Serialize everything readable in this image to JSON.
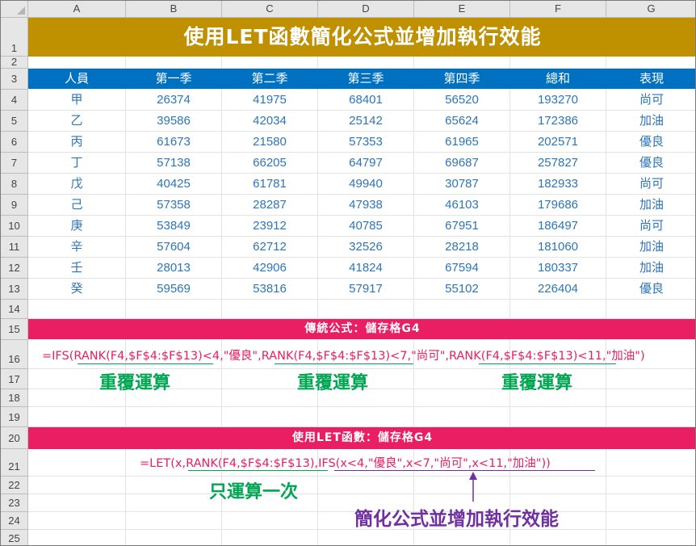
{
  "columns": [
    "A",
    "B",
    "C",
    "D",
    "E",
    "F",
    "G"
  ],
  "rows": [
    "1",
    "2",
    "3",
    "4",
    "5",
    "6",
    "7",
    "8",
    "9",
    "10",
    "11",
    "12",
    "13",
    "14",
    "15",
    "16",
    "17",
    "18",
    "19",
    "20",
    "21",
    "22",
    "23",
    "24",
    "25"
  ],
  "title": "使用LET函數簡化公式並增加執行效能",
  "table": {
    "headers": [
      "人員",
      "第一季",
      "第二季",
      "第三季",
      "第四季",
      "總和",
      "表現"
    ],
    "rows": [
      [
        "甲",
        "26374",
        "41975",
        "68401",
        "56520",
        "193270",
        "尚可"
      ],
      [
        "乙",
        "39586",
        "42034",
        "25142",
        "65624",
        "172386",
        "加油"
      ],
      [
        "丙",
        "61673",
        "21580",
        "57353",
        "61965",
        "202571",
        "優良"
      ],
      [
        "丁",
        "57138",
        "66205",
        "64797",
        "69687",
        "257827",
        "優良"
      ],
      [
        "戊",
        "40425",
        "61781",
        "49940",
        "30787",
        "182933",
        "尚可"
      ],
      [
        "己",
        "57358",
        "28287",
        "47938",
        "46103",
        "179686",
        "加油"
      ],
      [
        "庚",
        "53849",
        "23912",
        "40785",
        "67951",
        "186497",
        "尚可"
      ],
      [
        "辛",
        "57604",
        "62712",
        "32526",
        "28218",
        "181060",
        "加油"
      ],
      [
        "壬",
        "28013",
        "42906",
        "41824",
        "67594",
        "180337",
        "加油"
      ],
      [
        "癸",
        "59569",
        "53816",
        "57917",
        "55102",
        "226404",
        "優良"
      ]
    ]
  },
  "section1": {
    "band": "傳統公式：儲存格G4",
    "formula": "=IFS(RANK(F4,$F$4:$F$13)<4,\"優良\",RANK(F4,$F$4:$F$13)<7,\"尚可\",RANK(F4,$F$4:$F$13)<11,\"加油\")",
    "repeat_label": "重覆運算"
  },
  "section2": {
    "band": "使用LET函數：儲存格G4",
    "formula": "=LET(x,RANK(F4,$F$4:$F$13),IFS(x<4,\"優良\",x<7,\"尚可\",x<11,\"加油\"))",
    "once_label": "只運算一次",
    "effect_label": "簡化公式並增加執行效能"
  },
  "colors": {
    "title_bg": "#bf9000",
    "header_bg": "#0070c0",
    "data_text": "#2e75b6",
    "band_bg": "#e91e63",
    "green": "#00a651",
    "purple": "#7030a0"
  }
}
